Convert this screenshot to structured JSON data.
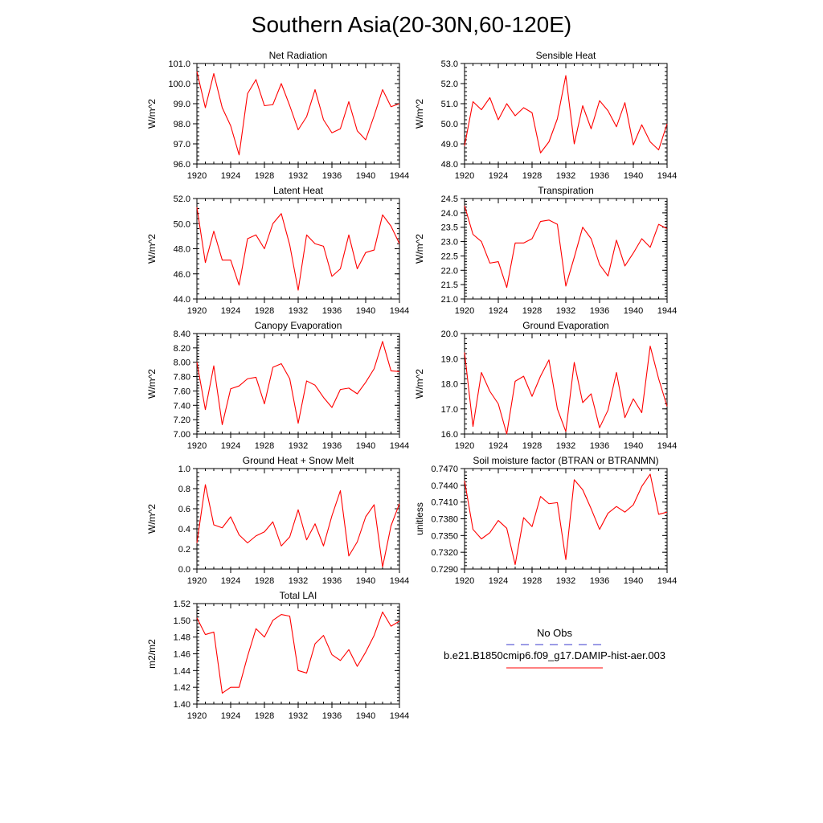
{
  "page_title": "Southern Asia(20-30N,60-120E)",
  "legend": {
    "obs_label": "No Obs",
    "obs_color": "#3a3acc",
    "model_label": "b.e21.B1850cmip6.f09_g17.DAMIP-hist-aer.003",
    "model_color": "#ff0000"
  },
  "chart_data": [
    {
      "type": "line",
      "title": "Net Radiation",
      "xlabel": "",
      "ylabel": "W/m^2",
      "xlim": [
        1920,
        1944
      ],
      "ylim": [
        96.0,
        101.0
      ],
      "x_ticks": [
        1920,
        1924,
        1928,
        1932,
        1936,
        1940,
        1944
      ],
      "y_ticks": [
        "96.0",
        "97.0",
        "98.0",
        "99.0",
        "100.0",
        "101.0"
      ],
      "x": [
        1920,
        1921,
        1922,
        1923,
        1924,
        1925,
        1926,
        1927,
        1928,
        1929,
        1930,
        1931,
        1932,
        1933,
        1934,
        1935,
        1936,
        1937,
        1938,
        1939,
        1940,
        1941,
        1942,
        1943,
        1944
      ],
      "series": [
        {
          "values": [
            100.6,
            98.8,
            100.5,
            98.8,
            97.9,
            96.45,
            99.5,
            100.2,
            98.9,
            98.95,
            100.0,
            98.9,
            97.7,
            98.35,
            99.7,
            98.2,
            97.55,
            97.75,
            99.1,
            97.65,
            97.2,
            98.4,
            99.7,
            98.85,
            99.0
          ]
        }
      ]
    },
    {
      "type": "line",
      "title": "Sensible Heat",
      "xlabel": "",
      "ylabel": "W/m^2",
      "xlim": [
        1920,
        1944
      ],
      "ylim": [
        48.0,
        53.0
      ],
      "x_ticks": [
        1920,
        1924,
        1928,
        1932,
        1936,
        1940,
        1944
      ],
      "y_ticks": [
        "48.0",
        "49.0",
        "50.0",
        "51.0",
        "52.0",
        "53.0"
      ],
      "x": [
        1920,
        1921,
        1922,
        1923,
        1924,
        1925,
        1926,
        1927,
        1928,
        1929,
        1930,
        1931,
        1932,
        1933,
        1934,
        1935,
        1936,
        1937,
        1938,
        1939,
        1940,
        1941,
        1942,
        1943,
        1944
      ],
      "series": [
        {
          "values": [
            48.9,
            51.1,
            50.7,
            51.3,
            50.2,
            51.0,
            50.4,
            50.8,
            50.55,
            48.55,
            49.1,
            50.25,
            52.4,
            49.0,
            50.9,
            49.75,
            51.15,
            50.65,
            49.85,
            51.05,
            48.95,
            49.95,
            49.1,
            48.7,
            50.0
          ]
        }
      ]
    },
    {
      "type": "line",
      "title": "Latent Heat",
      "xlabel": "",
      "ylabel": "W/m^2",
      "xlim": [
        1920,
        1944
      ],
      "ylim": [
        44.0,
        52.0
      ],
      "x_ticks": [
        1920,
        1924,
        1928,
        1932,
        1936,
        1940,
        1944
      ],
      "y_ticks": [
        "44.0",
        "46.0",
        "48.0",
        "50.0",
        "52.0"
      ],
      "x": [
        1920,
        1921,
        1922,
        1923,
        1924,
        1925,
        1926,
        1927,
        1928,
        1929,
        1930,
        1931,
        1932,
        1933,
        1934,
        1935,
        1936,
        1937,
        1938,
        1939,
        1940,
        1941,
        1942,
        1943,
        1944
      ],
      "series": [
        {
          "values": [
            51.3,
            46.9,
            49.4,
            47.1,
            47.1,
            45.1,
            48.8,
            49.1,
            48.0,
            50.0,
            50.8,
            48.3,
            44.7,
            49.1,
            48.4,
            48.2,
            45.8,
            46.4,
            49.1,
            46.4,
            47.7,
            47.9,
            50.7,
            49.8,
            48.4
          ]
        }
      ]
    },
    {
      "type": "line",
      "title": "Transpiration",
      "xlabel": "",
      "ylabel": "W/m^2",
      "xlim": [
        1920,
        1944
      ],
      "ylim": [
        21.0,
        24.5
      ],
      "x_ticks": [
        1920,
        1924,
        1928,
        1932,
        1936,
        1940,
        1944
      ],
      "y_ticks": [
        "21.0",
        "21.5",
        "22.0",
        "22.5",
        "23.0",
        "23.5",
        "24.0",
        "24.5"
      ],
      "x": [
        1920,
        1921,
        1922,
        1923,
        1924,
        1925,
        1926,
        1927,
        1928,
        1929,
        1930,
        1931,
        1932,
        1933,
        1934,
        1935,
        1936,
        1937,
        1938,
        1939,
        1940,
        1941,
        1942,
        1943,
        1944
      ],
      "series": [
        {
          "values": [
            24.25,
            23.25,
            23.0,
            22.25,
            22.3,
            21.4,
            22.95,
            22.95,
            23.1,
            23.7,
            23.75,
            23.6,
            21.45,
            22.45,
            23.5,
            23.1,
            22.2,
            21.8,
            23.05,
            22.15,
            22.6,
            23.1,
            22.8,
            23.6,
            23.45
          ]
        }
      ]
    },
    {
      "type": "line",
      "title": "Canopy Evaporation",
      "xlabel": "",
      "ylabel": "W/m^2",
      "xlim": [
        1920,
        1944
      ],
      "ylim": [
        7.0,
        8.4
      ],
      "x_ticks": [
        1920,
        1924,
        1928,
        1932,
        1936,
        1940,
        1944
      ],
      "y_ticks": [
        "7.00",
        "7.20",
        "7.40",
        "7.60",
        "7.80",
        "8.00",
        "8.20",
        "8.40"
      ],
      "x": [
        1920,
        1921,
        1922,
        1923,
        1924,
        1925,
        1926,
        1927,
        1928,
        1929,
        1930,
        1931,
        1932,
        1933,
        1934,
        1935,
        1936,
        1937,
        1938,
        1939,
        1940,
        1941,
        1942,
        1943,
        1944
      ],
      "series": [
        {
          "values": [
            8.0,
            7.34,
            7.95,
            7.13,
            7.63,
            7.67,
            7.77,
            7.79,
            7.42,
            7.93,
            7.98,
            7.77,
            7.15,
            7.74,
            7.68,
            7.51,
            7.37,
            7.62,
            7.64,
            7.56,
            7.72,
            7.91,
            8.29,
            7.88,
            7.87
          ]
        }
      ]
    },
    {
      "type": "line",
      "title": "Ground Evaporation",
      "xlabel": "",
      "ylabel": "W/m^2",
      "xlim": [
        1920,
        1944
      ],
      "ylim": [
        16.0,
        20.0
      ],
      "x_ticks": [
        1920,
        1924,
        1928,
        1932,
        1936,
        1940,
        1944
      ],
      "y_ticks": [
        "16.0",
        "17.0",
        "18.0",
        "19.0",
        "20.0"
      ],
      "x": [
        1920,
        1921,
        1922,
        1923,
        1924,
        1925,
        1926,
        1927,
        1928,
        1929,
        1930,
        1931,
        1932,
        1933,
        1934,
        1935,
        1936,
        1937,
        1938,
        1939,
        1940,
        1941,
        1942,
        1943,
        1944
      ],
      "series": [
        {
          "values": [
            19.25,
            16.3,
            18.45,
            17.7,
            17.2,
            16.0,
            18.1,
            18.3,
            17.5,
            18.3,
            18.95,
            17.0,
            16.1,
            18.85,
            17.25,
            17.6,
            16.25,
            16.95,
            18.45,
            16.65,
            17.4,
            16.85,
            19.5,
            18.2,
            17.1
          ]
        }
      ]
    },
    {
      "type": "line",
      "title": "Ground Heat + Snow Melt",
      "xlabel": "",
      "ylabel": "W/m^2",
      "xlim": [
        1920,
        1944
      ],
      "ylim": [
        0.0,
        1.0
      ],
      "x_ticks": [
        1920,
        1924,
        1928,
        1932,
        1936,
        1940,
        1944
      ],
      "y_ticks": [
        "0.0",
        "0.2",
        "0.4",
        "0.6",
        "0.8",
        "1.0"
      ],
      "x": [
        1920,
        1921,
        1922,
        1923,
        1924,
        1925,
        1926,
        1927,
        1928,
        1929,
        1930,
        1931,
        1932,
        1933,
        1934,
        1935,
        1936,
        1937,
        1938,
        1939,
        1940,
        1941,
        1942,
        1943,
        1944
      ],
      "series": [
        {
          "values": [
            0.26,
            0.84,
            0.44,
            0.41,
            0.52,
            0.34,
            0.26,
            0.33,
            0.37,
            0.47,
            0.23,
            0.32,
            0.59,
            0.29,
            0.45,
            0.23,
            0.53,
            0.78,
            0.13,
            0.27,
            0.52,
            0.64,
            0.02,
            0.43,
            0.65
          ]
        }
      ]
    },
    {
      "type": "line",
      "title": "Soil moisture factor (BTRAN or BTRANMN)",
      "xlabel": "",
      "ylabel": "unitless",
      "xlim": [
        1920,
        1944
      ],
      "ylim": [
        0.729,
        0.747
      ],
      "x_ticks": [
        1920,
        1924,
        1928,
        1932,
        1936,
        1940,
        1944
      ],
      "y_ticks": [
        "0.7290",
        "0.7320",
        "0.7350",
        "0.7380",
        "0.7410",
        "0.7440",
        "0.7470"
      ],
      "x": [
        1920,
        1921,
        1922,
        1923,
        1924,
        1925,
        1926,
        1927,
        1928,
        1929,
        1930,
        1931,
        1932,
        1933,
        1934,
        1935,
        1936,
        1937,
        1938,
        1939,
        1940,
        1941,
        1942,
        1943,
        1944
      ],
      "series": [
        {
          "values": [
            0.7448,
            0.7361,
            0.7344,
            0.7355,
            0.7377,
            0.7363,
            0.7298,
            0.7382,
            0.7366,
            0.742,
            0.7407,
            0.7409,
            0.7307,
            0.745,
            0.7432,
            0.7398,
            0.7361,
            0.739,
            0.7402,
            0.7392,
            0.7405,
            0.7438,
            0.746,
            0.7388,
            0.7392
          ]
        }
      ]
    },
    {
      "type": "line",
      "title": "Total LAI",
      "xlabel": "",
      "ylabel": "m2/m2",
      "xlim": [
        1920,
        1944
      ],
      "ylim": [
        1.4,
        1.52
      ],
      "x_ticks": [
        1920,
        1924,
        1928,
        1932,
        1936,
        1940,
        1944
      ],
      "y_ticks": [
        "1.40",
        "1.42",
        "1.44",
        "1.46",
        "1.48",
        "1.50",
        "1.52"
      ],
      "x": [
        1920,
        1921,
        1922,
        1923,
        1924,
        1925,
        1926,
        1927,
        1928,
        1929,
        1930,
        1931,
        1932,
        1933,
        1934,
        1935,
        1936,
        1937,
        1938,
        1939,
        1940,
        1941,
        1942,
        1943,
        1944
      ],
      "series": [
        {
          "values": [
            1.503,
            1.483,
            1.486,
            1.413,
            1.42,
            1.42,
            1.457,
            1.49,
            1.48,
            1.5,
            1.507,
            1.505,
            1.44,
            1.437,
            1.472,
            1.482,
            1.459,
            1.452,
            1.465,
            1.445,
            1.462,
            1.482,
            1.51,
            1.493,
            1.499
          ]
        }
      ]
    }
  ]
}
